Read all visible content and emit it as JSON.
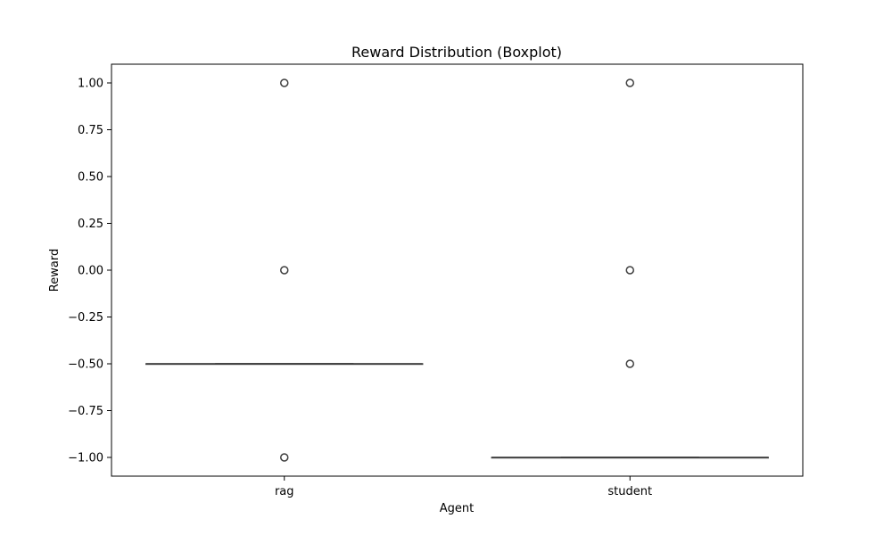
{
  "chart_data": {
    "type": "boxplot",
    "title": "Reward Distribution (Boxplot)",
    "xlabel": "Agent",
    "ylabel": "Reward",
    "categories": [
      "rag",
      "student"
    ],
    "ylim": [
      -1.1,
      1.1
    ],
    "yticks": [
      1.0,
      0.75,
      0.5,
      0.25,
      0.0,
      -0.25,
      -0.5,
      -0.75,
      -1.0
    ],
    "ytick_labels": [
      "1.00",
      "0.75",
      "0.50",
      "0.25",
      "0.00",
      "−0.25",
      "−0.50",
      "−0.75",
      "−1.00"
    ],
    "grid": false,
    "boxes": [
      {
        "name": "rag",
        "q1": -0.5,
        "median": -0.5,
        "q3": -0.5,
        "whisker_low": -0.5,
        "whisker_high": -0.5,
        "outliers": [
          1.0,
          0.0,
          -1.0
        ]
      },
      {
        "name": "student",
        "q1": -1.0,
        "median": -1.0,
        "q3": -1.0,
        "whisker_low": -1.0,
        "whisker_high": -1.0,
        "outliers": [
          1.0,
          0.0,
          -0.5
        ]
      }
    ],
    "colors": {
      "line": "#3f3f3f",
      "axes": "#000000",
      "outlier_edge": "#3f3f3f"
    }
  }
}
